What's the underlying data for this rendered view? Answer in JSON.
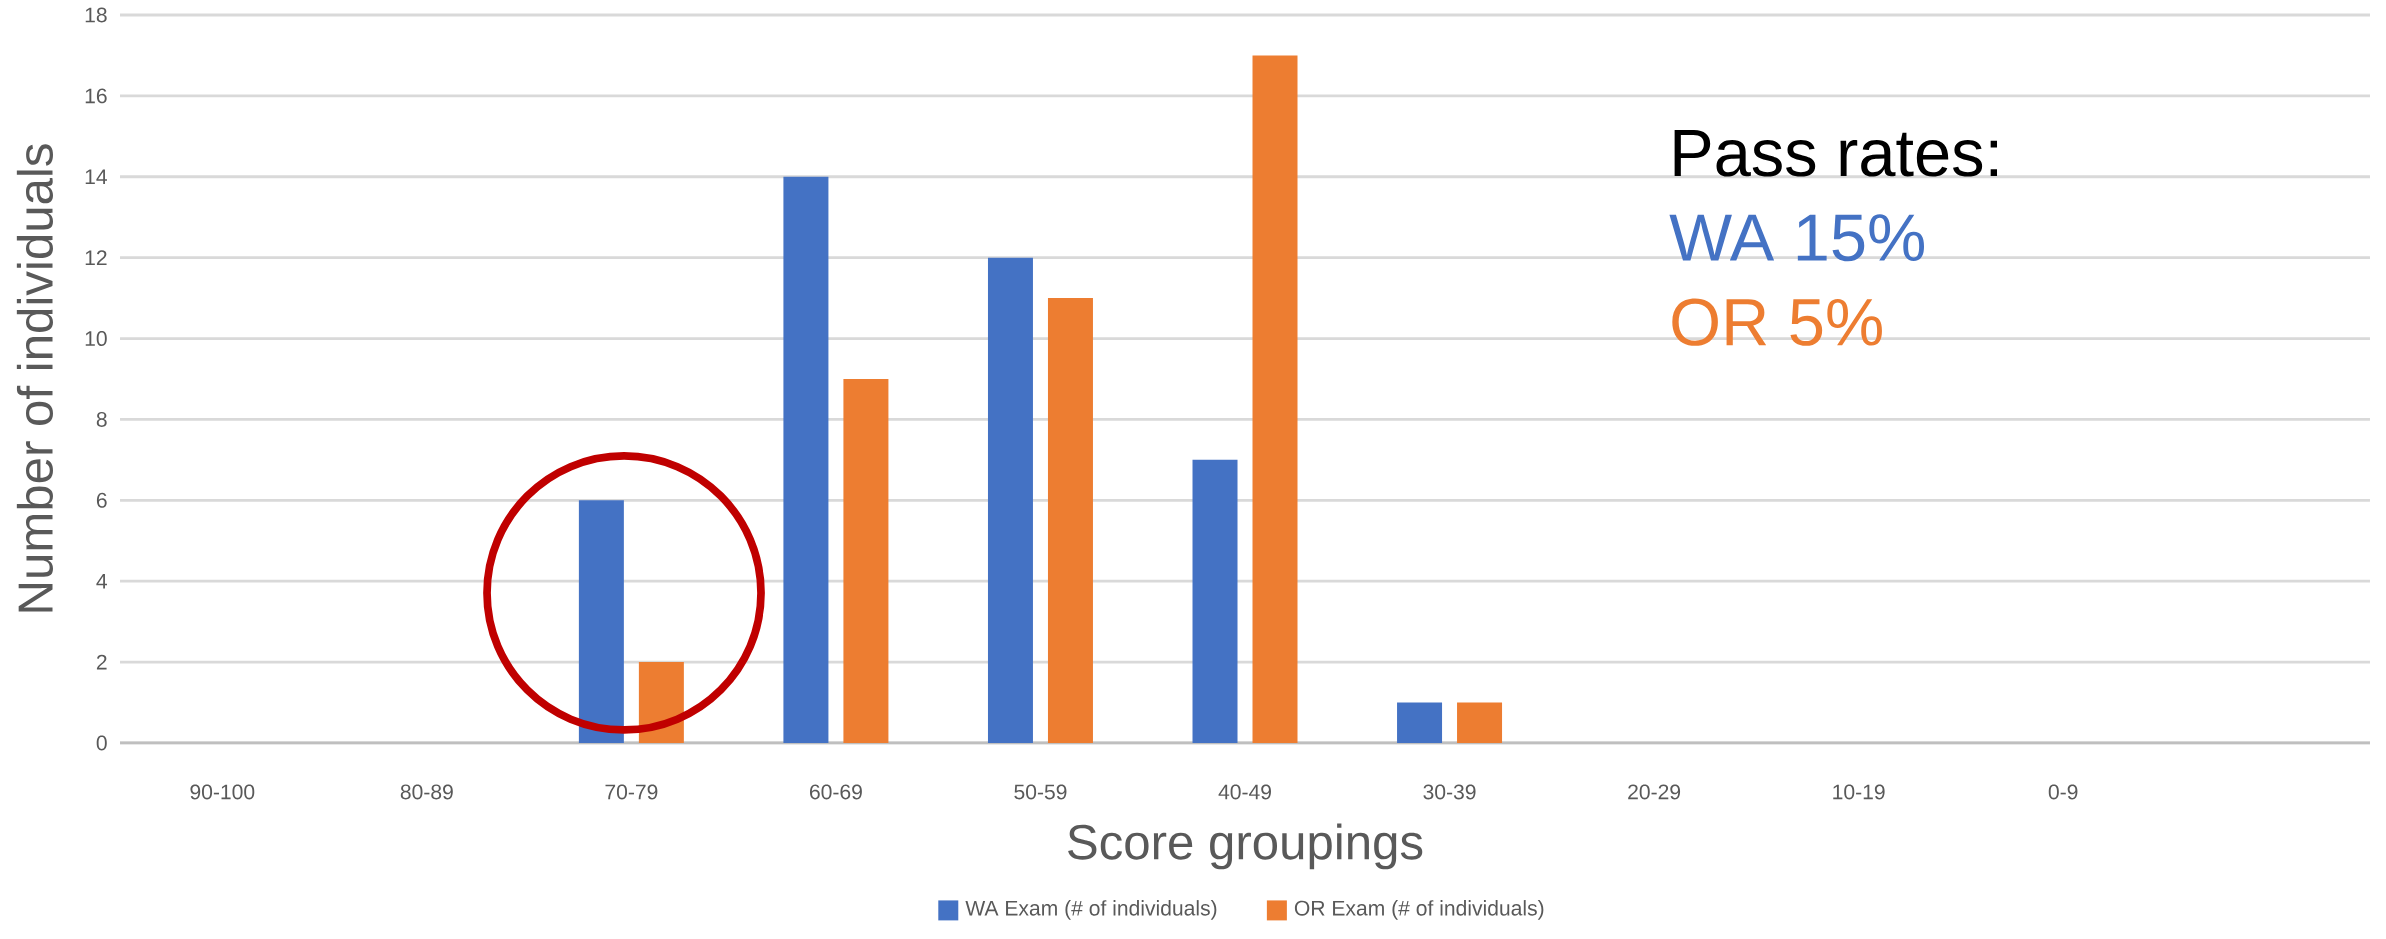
{
  "chart_data": {
    "type": "bar",
    "xlabel": "Score groupings",
    "ylabel": "Number of individuals",
    "categories": [
      "90-100",
      "80-89",
      "70-79",
      "60-69",
      "50-59",
      "40-49",
      "30-39",
      "20-29",
      "10-19",
      "0-9",
      null
    ],
    "series": [
      {
        "name": "WA Exam (# of individuals)",
        "color": "#4472c4",
        "values": [
          0,
          0,
          6,
          14,
          12,
          7,
          1,
          0,
          0,
          0,
          null
        ]
      },
      {
        "name": "OR Exam (# of individuals)",
        "color": "#ed7d31",
        "values": [
          0,
          0,
          2,
          9,
          11,
          17,
          1,
          0,
          0,
          0,
          null
        ]
      }
    ],
    "annotations": [
      "Pass rates:",
      "WA 15%",
      "OR 5%"
    ],
    "ylim": [
      0,
      18
    ],
    "yticks": [
      0,
      2,
      4,
      6,
      8,
      10,
      12,
      14,
      16,
      18
    ],
    "grid": "y",
    "legend": "bottom"
  }
}
